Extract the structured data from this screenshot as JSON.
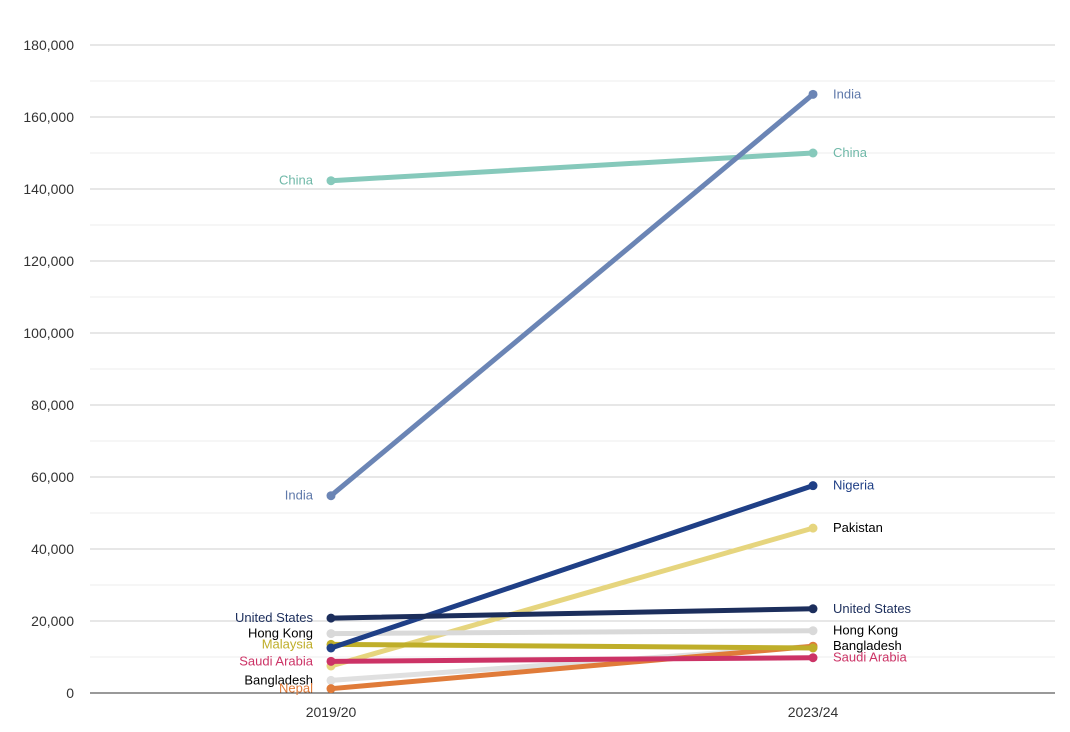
{
  "chart_data": {
    "type": "line",
    "categories": [
      "2019/20",
      "2023/24"
    ],
    "y_ticks": [
      "0",
      "20,000",
      "40,000",
      "60,000",
      "80,000",
      "100,000",
      "120,000",
      "140,000",
      "160,000",
      "180,000"
    ],
    "ylim": [
      0,
      180000
    ],
    "grid": true,
    "legend": "none",
    "series": [
      {
        "name": "Bangladesh",
        "values": [
          3500,
          13000
        ],
        "color": "#e0e0e0",
        "label_color": "#000000",
        "label_start": "Bangladesh",
        "label_end": "Bangladesh"
      },
      {
        "name": "Nepal",
        "values": [
          1200,
          13000
        ],
        "color": "#e07b39",
        "label_color": "#e07b39",
        "label_start": "Nepal",
        "label_end": ""
      },
      {
        "name": "Pakistan",
        "values": [
          7500,
          45800
        ],
        "color": "#e6d57e",
        "label_color": "#000000",
        "label_start": "",
        "label_end": "Pakistan"
      },
      {
        "name": "Hong Kong",
        "values": [
          16500,
          17300
        ],
        "color": "#d9d9d9",
        "label_color": "#000000",
        "label_start": "Hong Kong",
        "label_end": "Hong Kong"
      },
      {
        "name": "Malaysia",
        "values": [
          13500,
          12500
        ],
        "color": "#bfae2a",
        "label_color": "#bfae2a",
        "label_start": "Malaysia",
        "label_end": ""
      },
      {
        "name": "Saudi Arabia",
        "values": [
          8800,
          9800
        ],
        "color": "#cc3366",
        "label_color": "#cc3366",
        "label_start": "Saudi Arabia",
        "label_end": "Saudi Arabia"
      },
      {
        "name": "Nigeria",
        "values": [
          12500,
          57600
        ],
        "color": "#1f3f86",
        "label_color": "#1f3f86",
        "label_start": "",
        "label_end": "Nigeria"
      },
      {
        "name": "United States",
        "values": [
          20800,
          23400
        ],
        "color": "#1c2e5c",
        "label_color": "#1c2e5c",
        "label_start": "United States",
        "label_end": "United States"
      },
      {
        "name": "China",
        "values": [
          142300,
          150000
        ],
        "color": "#86c9bb",
        "label_color": "#6fb8a8",
        "label_start": "China",
        "label_end": "China"
      },
      {
        "name": "India",
        "values": [
          54800,
          166300
        ],
        "color": "#6b85b5",
        "label_color": "#5f79aa",
        "label_start": "India",
        "label_end": "India"
      }
    ]
  }
}
